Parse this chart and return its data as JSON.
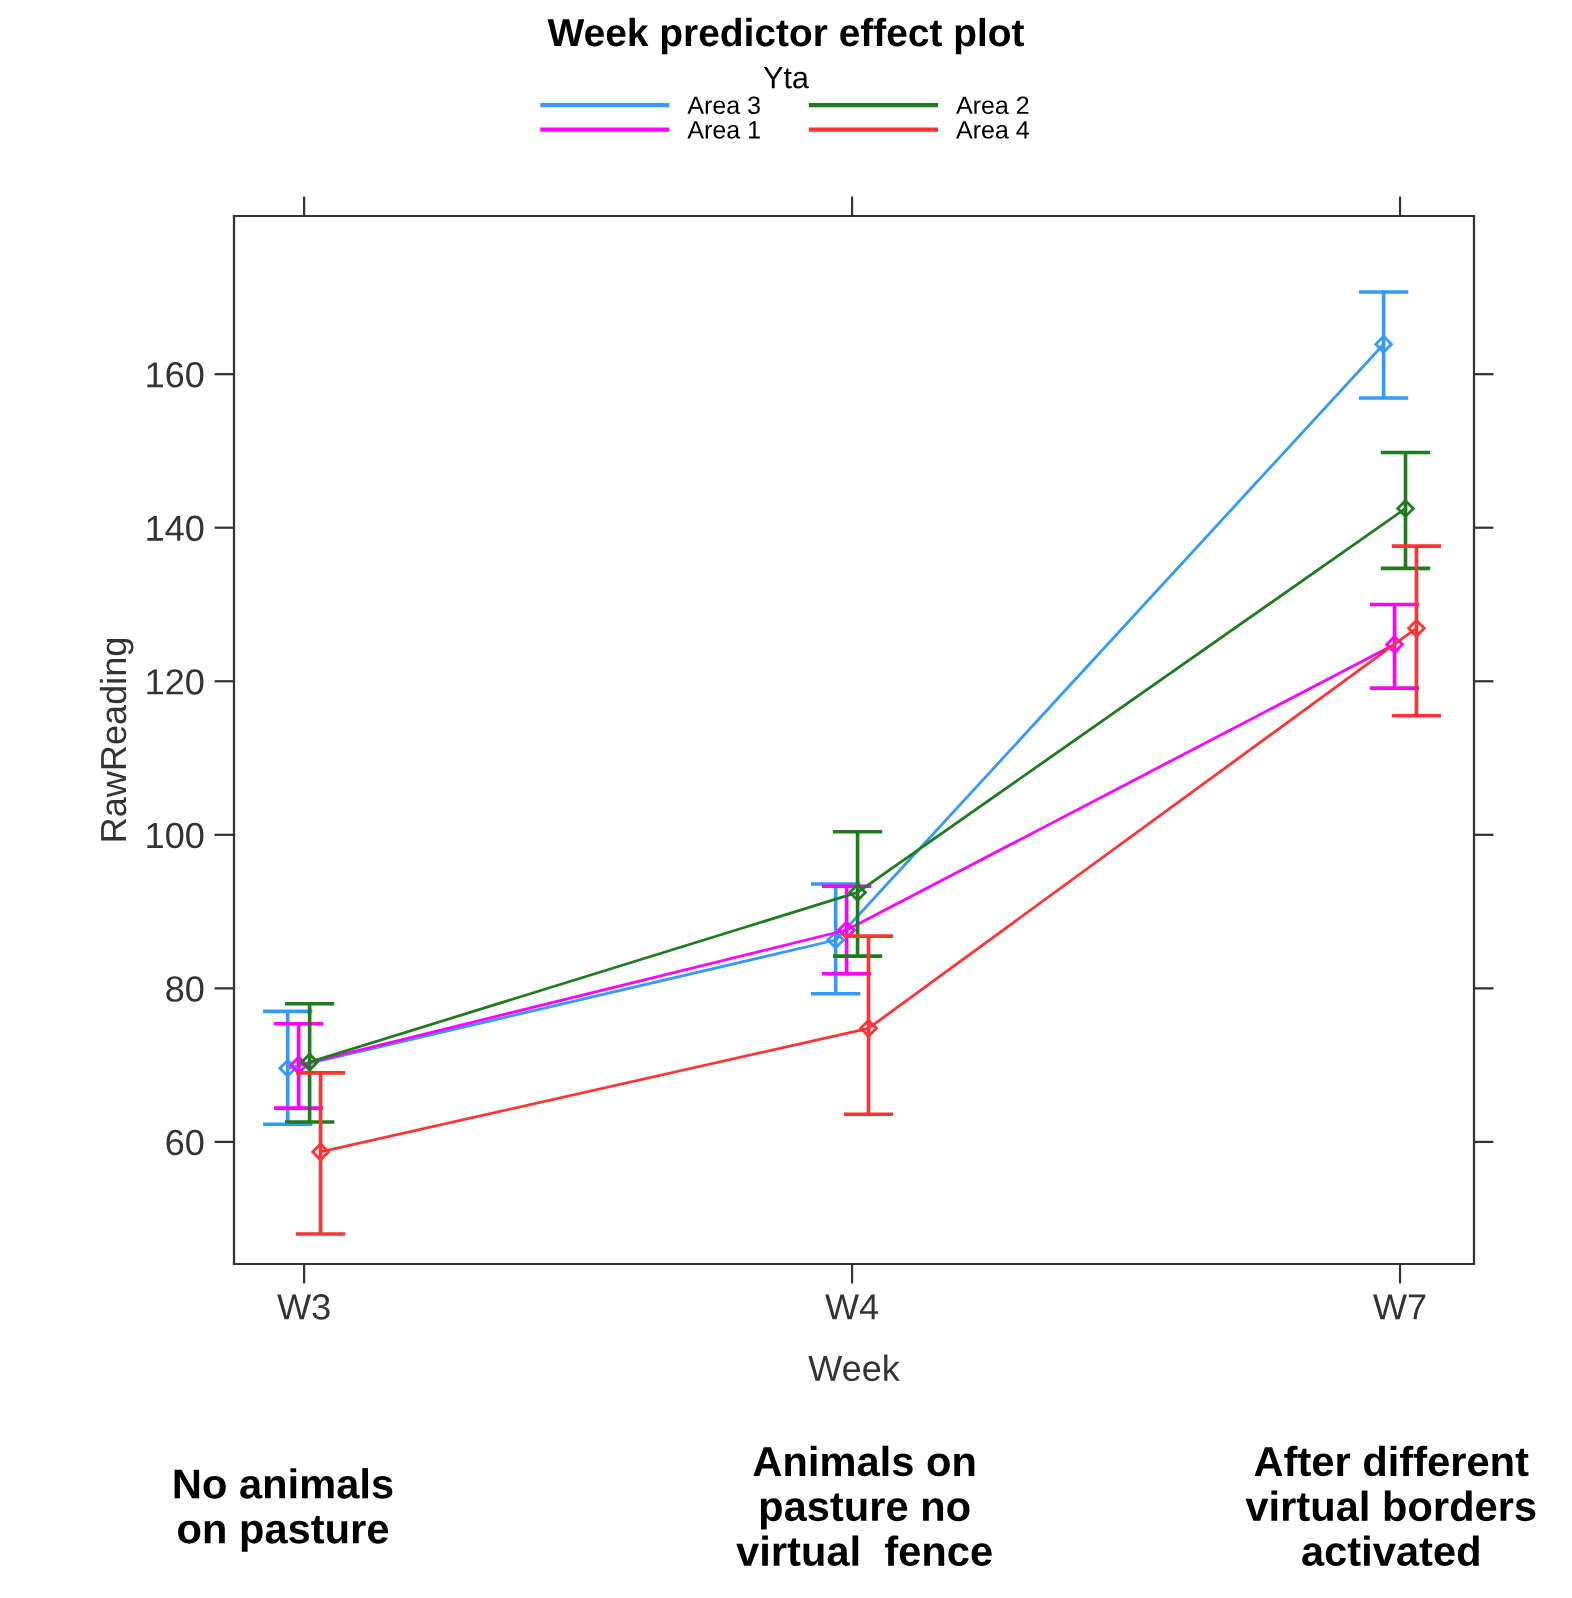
{
  "chart_data": {
    "type": "line",
    "title": "Week predictor effect plot",
    "xlabel": "Week",
    "ylabel": "RawReading",
    "legend_title": "Yta",
    "categories": [
      "W3",
      "W4",
      "W7"
    ],
    "series": [
      {
        "name": "Area 3",
        "color": "#3399ff",
        "values": [
          69.6,
          86.3,
          163.9
        ],
        "errors": [
          [
            62.3,
            77.0
          ],
          [
            79.3,
            93.6
          ],
          [
            156.9,
            170.7
          ]
        ]
      },
      {
        "name": "Area 1",
        "color": "#ff00ff",
        "values": [
          70.0,
          87.6,
          124.8
        ],
        "errors": [
          [
            64.4,
            75.4
          ],
          [
            81.9,
            93.3
          ],
          [
            119.1,
            130.0
          ]
        ]
      },
      {
        "name": "Area 2",
        "color": "#1e7b1e",
        "values": [
          70.4,
          92.5,
          142.5
        ],
        "errors": [
          [
            62.6,
            78.0
          ],
          [
            84.2,
            100.4
          ],
          [
            134.7,
            149.8
          ]
        ]
      },
      {
        "name": "Area 4",
        "color": "#ff3333",
        "values": [
          58.7,
          74.8,
          126.9
        ],
        "errors": [
          [
            48.0,
            69.0
          ],
          [
            63.6,
            86.8
          ],
          [
            115.5,
            137.6
          ]
        ]
      }
    ],
    "ylim": [
      44.1,
      180.6
    ],
    "yticks": [
      60,
      80,
      100,
      120,
      140,
      160
    ],
    "marker": "diamond",
    "grid": false,
    "legend": "top",
    "annotations": [
      "No animals\non pasture",
      "Animals on\npasture no\nvirtual  fence",
      "After different\nvirtual borders\nactivated"
    ]
  }
}
